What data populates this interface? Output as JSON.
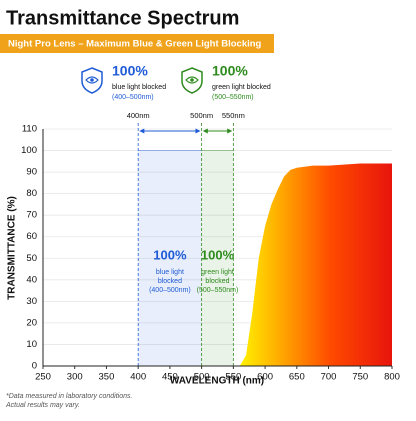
{
  "chart_data": {
    "type": "area",
    "title": "Transmittance Spectrum",
    "subtitle": "Night Pro Lens – Maximum Blue & Green Light Blocking",
    "xlabel": "WAVELENGTH (nm)",
    "ylabel": "TRANSMITTANCE (%)",
    "x": [
      250,
      500,
      550,
      560,
      570,
      580,
      590,
      600,
      610,
      620,
      630,
      640,
      650,
      675,
      700,
      750,
      800
    ],
    "values": [
      0,
      0,
      0,
      0,
      5,
      25,
      50,
      65,
      75,
      82,
      88,
      91,
      92,
      93,
      93,
      94,
      94
    ],
    "xlim": [
      250,
      800
    ],
    "ylim": [
      0,
      110
    ],
    "xticks": [
      250,
      300,
      350,
      400,
      450,
      500,
      550,
      600,
      650,
      700,
      750,
      800
    ],
    "yticks": [
      0,
      10,
      20,
      30,
      40,
      50,
      60,
      70,
      80,
      90,
      100,
      110
    ],
    "grid": true,
    "regions": [
      {
        "x": [
          400,
          500
        ],
        "y": 100,
        "color": "#1f5bd6",
        "percent": "100%",
        "caption": [
          "blue light",
          "blocked"
        ],
        "range": "(400–500nm)"
      },
      {
        "x": [
          500,
          550
        ],
        "y": 100,
        "color": "#2e8b1e",
        "percent": "100%",
        "caption": [
          "green light",
          "blocked"
        ],
        "range": "(500–550nm)"
      }
    ],
    "badges": [
      {
        "color": "#1f5bd6",
        "percent": "100%",
        "caption": "blue light blocked",
        "range": "(400–500nm)"
      },
      {
        "color": "#2e8b1e",
        "percent": "100%",
        "caption": "green light blocked",
        "range": "(500–550nm)"
      }
    ],
    "markers": [
      {
        "value": 400,
        "label": "400nm"
      },
      {
        "value": 500,
        "label": "500nm"
      },
      {
        "value": 550,
        "label": "550nm"
      }
    ],
    "footnote": [
      "*Data measured in laboratory conditions.",
      "Actual results may vary."
    ]
  }
}
